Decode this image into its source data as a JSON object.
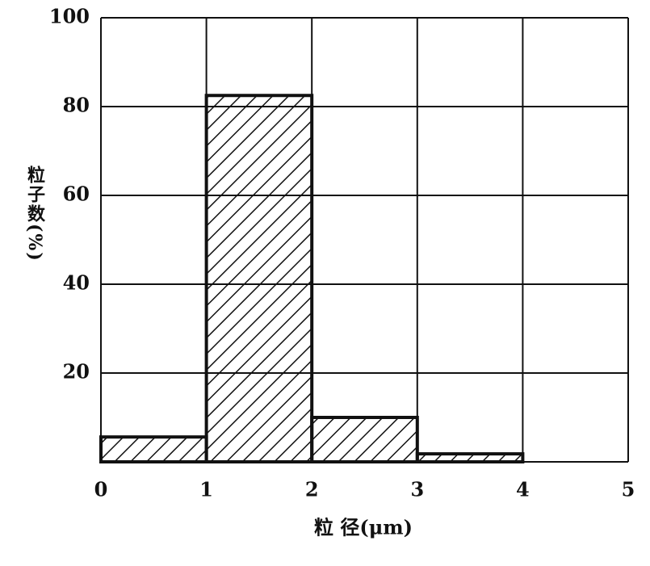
{
  "chart_data": {
    "type": "histogram",
    "bins": [
      0,
      1,
      2,
      3,
      4,
      5
    ],
    "counts": [
      5.6,
      82.5,
      10,
      1.8,
      0
    ],
    "xlim": [
      0,
      5
    ],
    "xticks": [
      0,
      1,
      2,
      3,
      4,
      5
    ],
    "ylim": [
      0,
      100
    ],
    "yticks": [
      20,
      40,
      60,
      80,
      100
    ],
    "xlabel": "粒 径(μm)",
    "ylabel": "粒子数(%)",
    "grid": true,
    "color": "#111111"
  }
}
